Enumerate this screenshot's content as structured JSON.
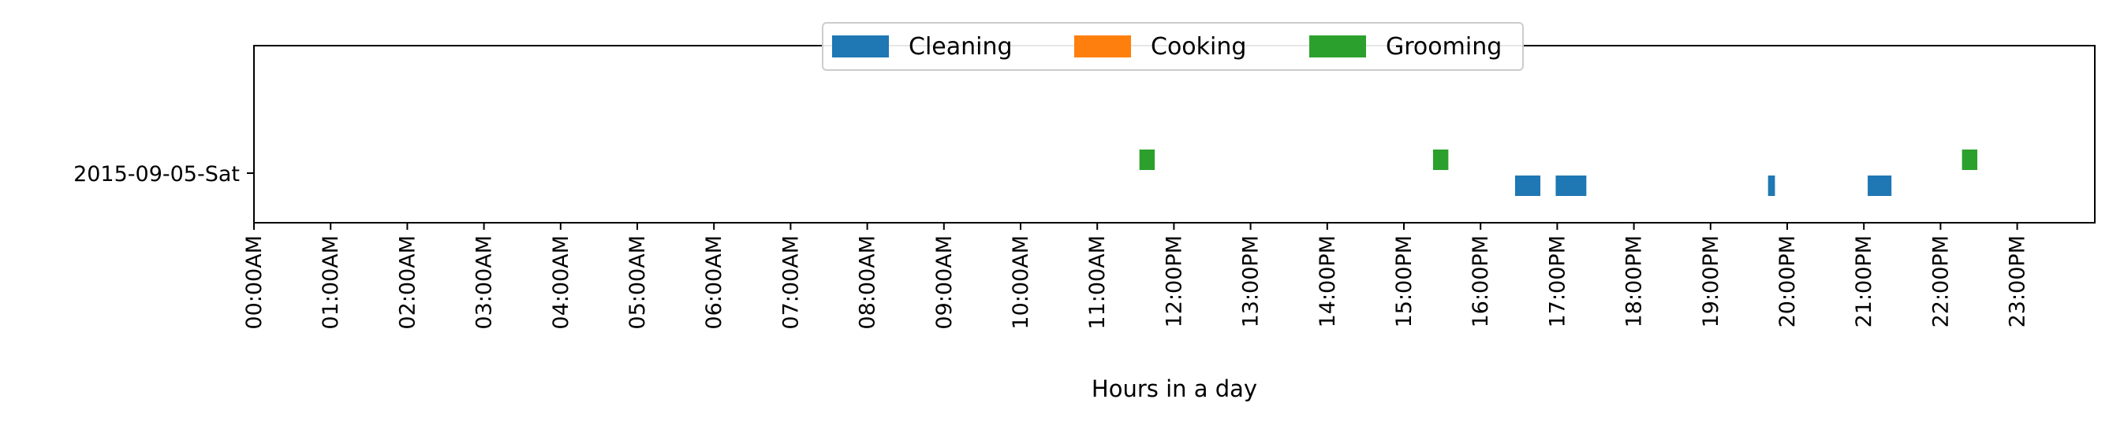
{
  "chart_data": {
    "type": "broken-bar-timeline",
    "title": "",
    "xlabel": "Hours in a day",
    "ylabel": "",
    "xlim_hours": [
      0,
      24
    ],
    "x_tick_labels": [
      "00:00AM",
      "01:00AM",
      "02:00AM",
      "03:00AM",
      "04:00AM",
      "05:00AM",
      "06:00AM",
      "07:00AM",
      "08:00AM",
      "09:00AM",
      "10:00AM",
      "11:00AM",
      "12:00PM",
      "13:00PM",
      "14:00PM",
      "15:00PM",
      "16:00PM",
      "17:00PM",
      "18:00PM",
      "19:00PM",
      "20:00PM",
      "21:00PM",
      "22:00PM",
      "23:00PM"
    ],
    "y_categories": [
      "2015-09-05-Sat"
    ],
    "legend": {
      "placement": "top-center",
      "entries": [
        "Cleaning",
        "Cooking",
        "Grooming"
      ]
    },
    "grid": false,
    "series": [
      {
        "name": "Cleaning",
        "color": "#1f77b4",
        "intervals": [
          {
            "day": "2015-09-05-Sat",
            "start_hour": 16.45,
            "end_hour": 16.78
          },
          {
            "day": "2015-09-05-Sat",
            "start_hour": 16.98,
            "end_hour": 17.38
          },
          {
            "day": "2015-09-05-Sat",
            "start_hour": 19.75,
            "end_hour": 19.84
          },
          {
            "day": "2015-09-05-Sat",
            "start_hour": 21.05,
            "end_hour": 21.36
          }
        ]
      },
      {
        "name": "Cooking",
        "color": "#ff7f0e",
        "intervals": []
      },
      {
        "name": "Grooming",
        "color": "#2ca02c",
        "intervals": [
          {
            "day": "2015-09-05-Sat",
            "start_hour": 11.55,
            "end_hour": 11.75
          },
          {
            "day": "2015-09-05-Sat",
            "start_hour": 15.38,
            "end_hour": 15.58
          },
          {
            "day": "2015-09-05-Sat",
            "start_hour": 22.28,
            "end_hour": 22.48
          }
        ]
      }
    ]
  }
}
